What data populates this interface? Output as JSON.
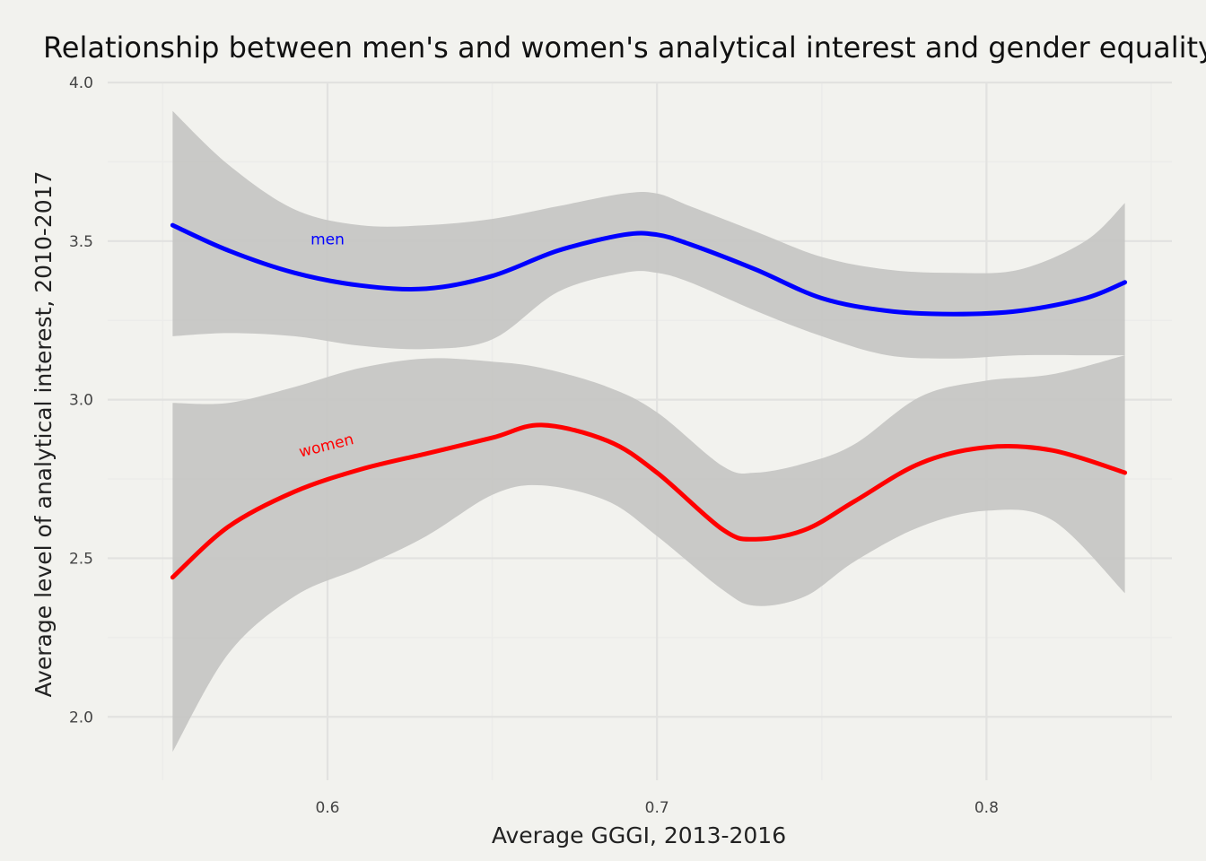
{
  "chart_data": {
    "type": "line",
    "title": "Relationship between men's and women's analytical interest and gender equality",
    "xlabel": "Average GGGI, 2013-2016",
    "ylabel": "Average level of analytical interest, 2010-2017",
    "xlim": [
      0.545,
      0.85
    ],
    "ylim": [
      1.8,
      4.0
    ],
    "x_ticks": [
      0.6,
      0.7,
      0.8
    ],
    "x_tick_labels": [
      "0.6",
      "0.7",
      "0.8"
    ],
    "y_ticks": [
      2.0,
      2.5,
      3.0,
      3.5,
      4.0
    ],
    "y_tick_labels": [
      "2.0",
      "2.5",
      "3.0",
      "3.5",
      "4.0"
    ],
    "grid": true,
    "legend": "none",
    "ribbon_color": "#c6c6c4",
    "series": [
      {
        "name": "men",
        "color": "#0000ff",
        "label": "men",
        "label_at": [
          0.6,
          3.49
        ],
        "label_angle": 0,
        "x": [
          0.553,
          0.57,
          0.59,
          0.61,
          0.63,
          0.65,
          0.67,
          0.69,
          0.7,
          0.71,
          0.73,
          0.75,
          0.77,
          0.79,
          0.81,
          0.83,
          0.842
        ],
        "y": [
          3.55,
          3.47,
          3.4,
          3.36,
          3.35,
          3.39,
          3.47,
          3.52,
          3.52,
          3.49,
          3.41,
          3.32,
          3.28,
          3.27,
          3.28,
          3.32,
          3.37
        ],
        "lower": [
          3.2,
          3.21,
          3.2,
          3.17,
          3.16,
          3.19,
          3.34,
          3.4,
          3.4,
          3.37,
          3.28,
          3.2,
          3.14,
          3.13,
          3.14,
          3.14,
          3.14
        ],
        "upper": [
          3.91,
          3.74,
          3.6,
          3.55,
          3.55,
          3.57,
          3.61,
          3.65,
          3.65,
          3.61,
          3.53,
          3.45,
          3.41,
          3.4,
          3.41,
          3.5,
          3.62
        ]
      },
      {
        "name": "women",
        "color": "#ff0000",
        "label": "women",
        "label_at": [
          0.6,
          2.84
        ],
        "label_angle": -14,
        "x": [
          0.553,
          0.57,
          0.59,
          0.61,
          0.63,
          0.65,
          0.665,
          0.685,
          0.7,
          0.72,
          0.73,
          0.745,
          0.76,
          0.78,
          0.8,
          0.82,
          0.842
        ],
        "y": [
          2.44,
          2.6,
          2.71,
          2.78,
          2.83,
          2.88,
          2.92,
          2.87,
          2.77,
          2.59,
          2.56,
          2.59,
          2.68,
          2.8,
          2.85,
          2.84,
          2.77
        ],
        "lower": [
          1.89,
          2.2,
          2.38,
          2.47,
          2.57,
          2.7,
          2.73,
          2.68,
          2.57,
          2.4,
          2.35,
          2.38,
          2.49,
          2.6,
          2.65,
          2.62,
          2.39
        ],
        "upper": [
          2.99,
          2.99,
          3.04,
          3.1,
          3.13,
          3.12,
          3.1,
          3.04,
          2.96,
          2.79,
          2.77,
          2.8,
          2.86,
          3.01,
          3.06,
          3.08,
          3.14
        ]
      }
    ]
  }
}
